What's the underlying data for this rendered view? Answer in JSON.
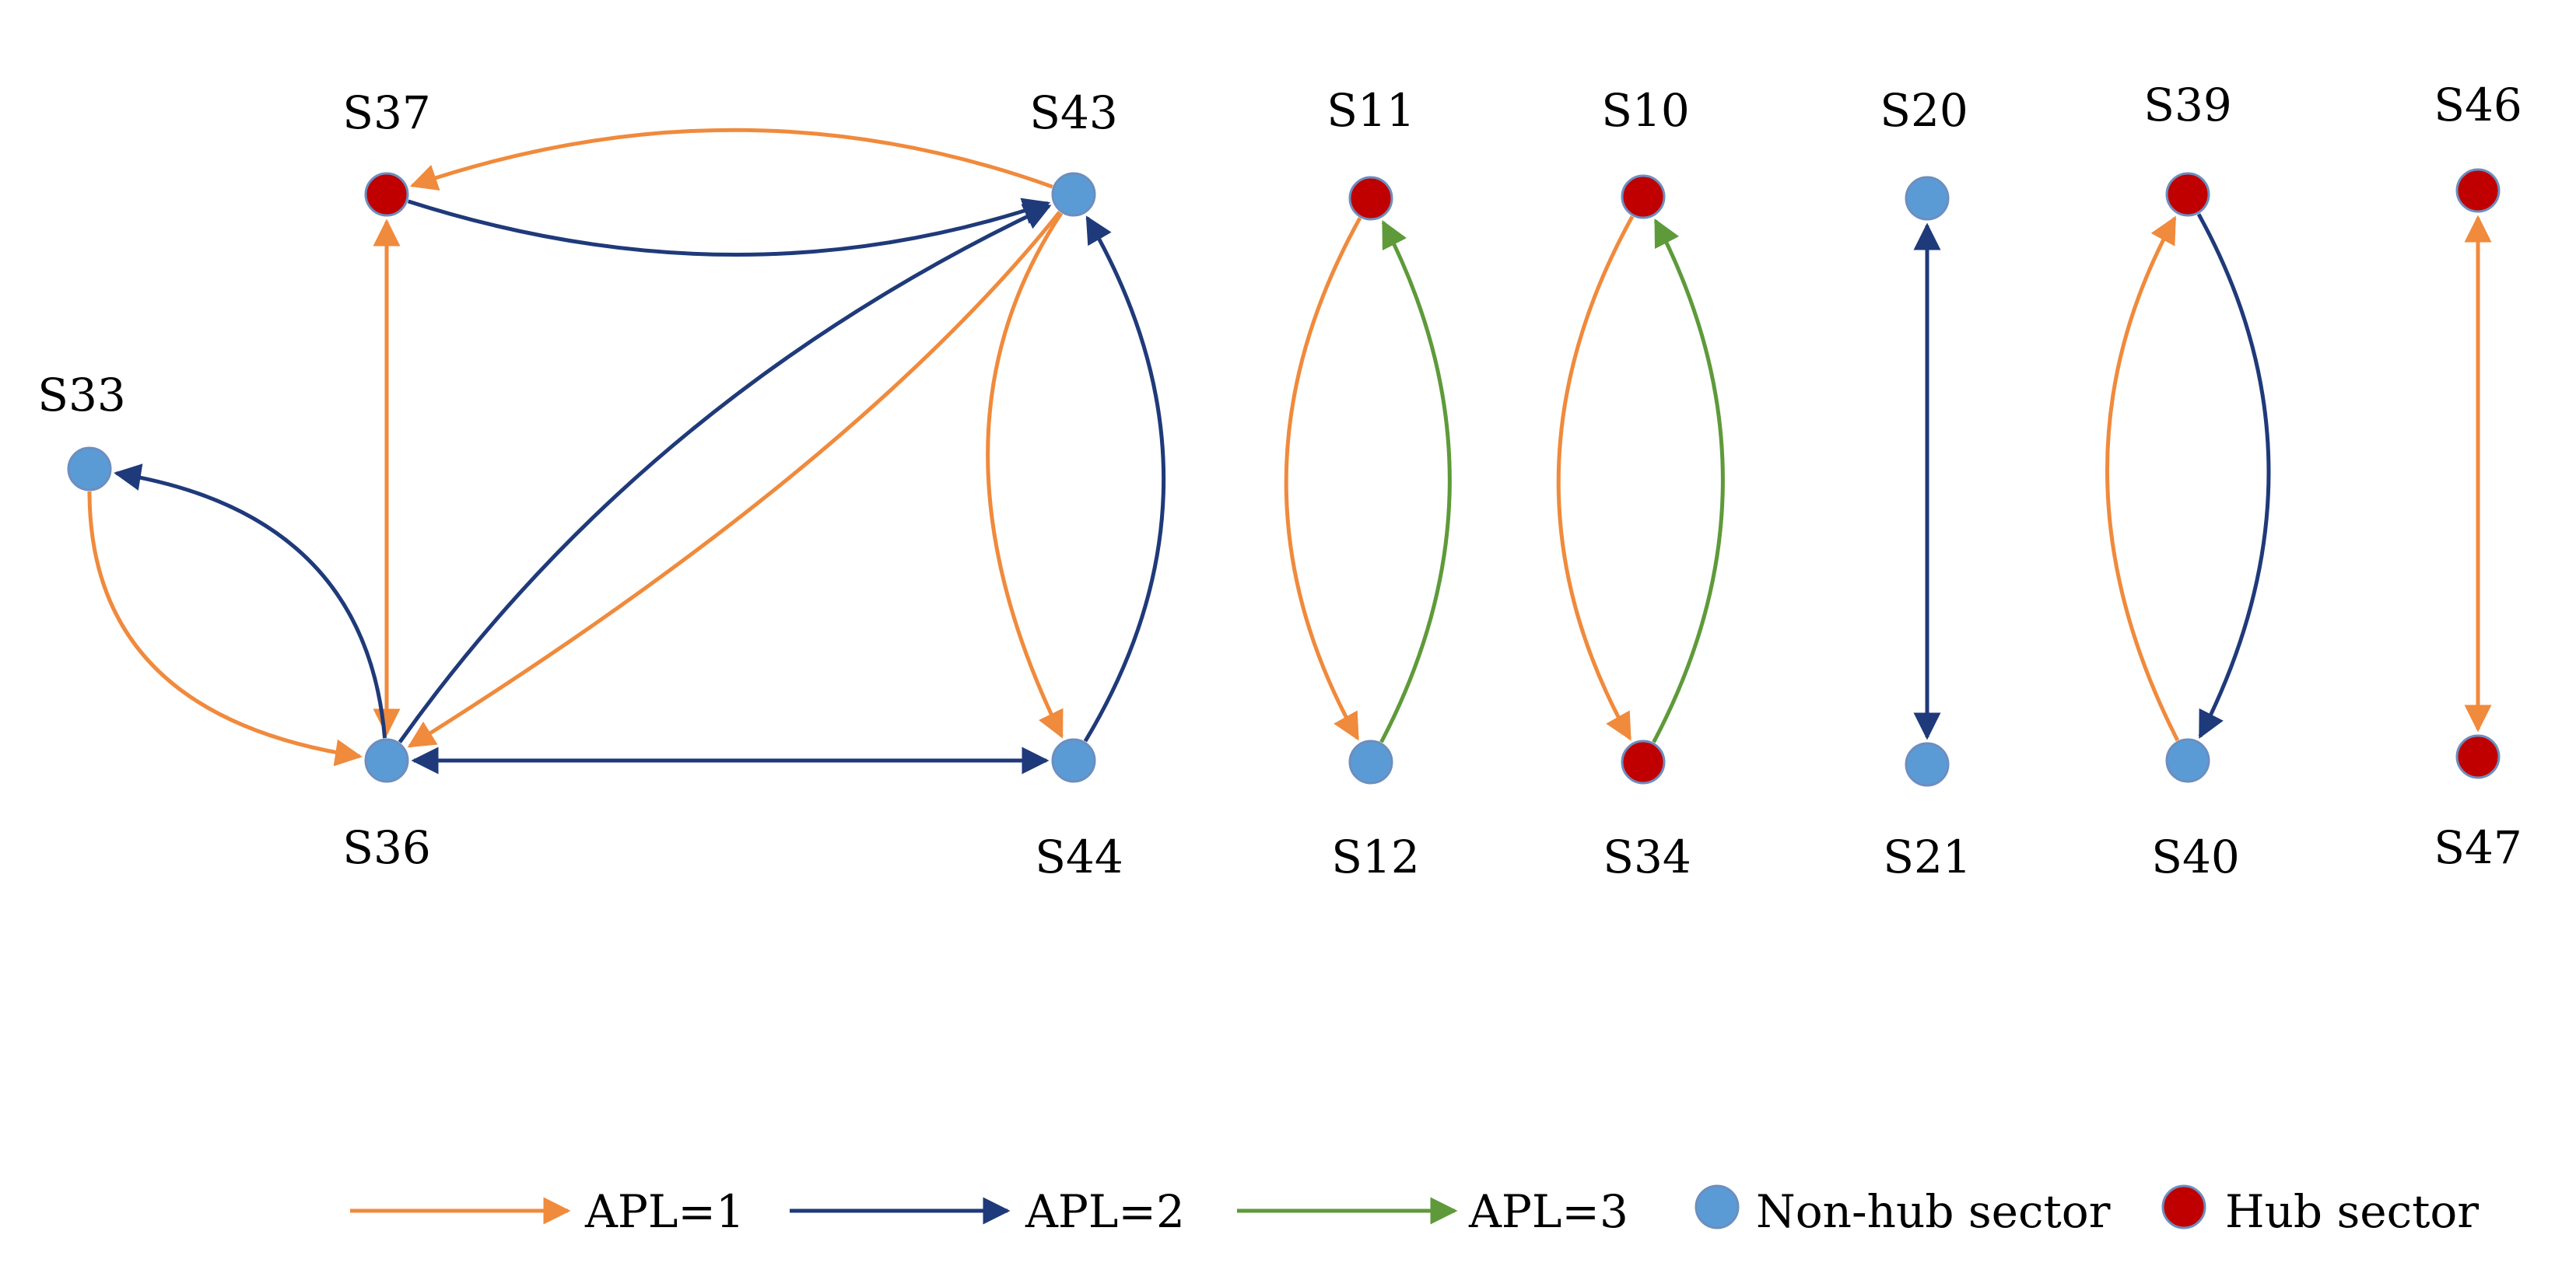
{
  "colors": {
    "apl1": "#F08A3C",
    "apl2": "#1F3A7A",
    "apl3": "#5E9A3A",
    "non_hub_fill": "#5B9BD5",
    "hub_fill": "#C00000",
    "node_stroke": "#6C8EBF"
  },
  "nodes": [
    {
      "id": "S37",
      "label": "S37",
      "type": "hub"
    },
    {
      "id": "S43",
      "label": "S43",
      "type": "non-hub"
    },
    {
      "id": "S33",
      "label": "S33",
      "type": "non-hub"
    },
    {
      "id": "S36",
      "label": "S36",
      "type": "non-hub"
    },
    {
      "id": "S44",
      "label": "S44",
      "type": "non-hub"
    },
    {
      "id": "S11",
      "label": "S11",
      "type": "hub"
    },
    {
      "id": "S12",
      "label": "S12",
      "type": "non-hub"
    },
    {
      "id": "S10",
      "label": "S10",
      "type": "hub"
    },
    {
      "id": "S34",
      "label": "S34",
      "type": "hub"
    },
    {
      "id": "S20",
      "label": "S20",
      "type": "non-hub"
    },
    {
      "id": "S21",
      "label": "S21",
      "type": "non-hub"
    },
    {
      "id": "S39",
      "label": "S39",
      "type": "hub"
    },
    {
      "id": "S40",
      "label": "S40",
      "type": "non-hub"
    },
    {
      "id": "S46",
      "label": "S46",
      "type": "hub"
    },
    {
      "id": "S47",
      "label": "S47",
      "type": "hub"
    }
  ],
  "edges": [
    {
      "from": "S43",
      "to": "S37",
      "apl": 1
    },
    {
      "from": "S37",
      "to": "S43",
      "apl": 2
    },
    {
      "from": "S37",
      "to": "S36",
      "apl": 1,
      "bidirectional": true
    },
    {
      "from": "S33",
      "to": "S36",
      "apl": 1
    },
    {
      "from": "S36",
      "to": "S33",
      "apl": 2
    },
    {
      "from": "S36",
      "to": "S43",
      "apl": 2
    },
    {
      "from": "S43",
      "to": "S36",
      "apl": 1
    },
    {
      "from": "S36",
      "to": "S44",
      "apl": 2,
      "bidirectional": true
    },
    {
      "from": "S43",
      "to": "S44",
      "apl": 1
    },
    {
      "from": "S44",
      "to": "S43",
      "apl": 2
    },
    {
      "from": "S11",
      "to": "S12",
      "apl": 1
    },
    {
      "from": "S12",
      "to": "S11",
      "apl": 3
    },
    {
      "from": "S10",
      "to": "S34",
      "apl": 1
    },
    {
      "from": "S34",
      "to": "S10",
      "apl": 3
    },
    {
      "from": "S20",
      "to": "S21",
      "apl": 2,
      "bidirectional": true
    },
    {
      "from": "S40",
      "to": "S39",
      "apl": 1
    },
    {
      "from": "S39",
      "to": "S40",
      "apl": 2
    },
    {
      "from": "S46",
      "to": "S47",
      "apl": 1,
      "bidirectional": true
    }
  ],
  "legend": {
    "apl1": "APL=1",
    "apl2": "APL=2",
    "apl3": "APL=3",
    "non_hub": "Non-hub sector",
    "hub": "Hub sector"
  }
}
